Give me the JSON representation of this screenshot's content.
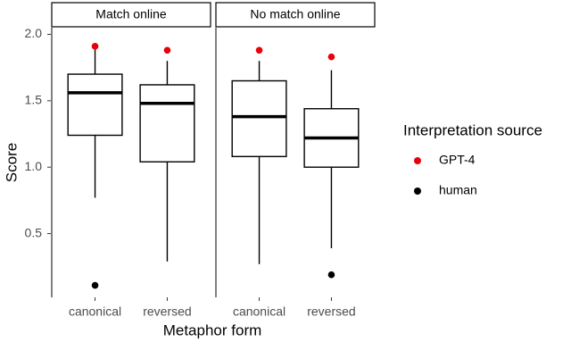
{
  "chart_data": [
    {
      "type": "box",
      "title": "Match online",
      "categories": [
        "canonical",
        "reversed"
      ],
      "boxes": [
        {
          "min": 0.77,
          "q1": 1.24,
          "median": 1.56,
          "q3": 1.7,
          "max": 1.9
        },
        {
          "min": 0.29,
          "q1": 1.04,
          "median": 1.48,
          "q3": 1.62,
          "max": 1.8
        }
      ],
      "series": [
        {
          "values": [
            1.91,
            1.88
          ]
        },
        {
          "values": [
            0.11,
            null
          ]
        }
      ]
    },
    {
      "type": "box",
      "title": "No match online",
      "categories": [
        "canonical",
        "reversed"
      ],
      "boxes": [
        {
          "min": 0.27,
          "q1": 1.08,
          "median": 1.38,
          "q3": 1.65,
          "max": 1.8
        },
        {
          "min": 0.39,
          "q1": 1.0,
          "median": 1.22,
          "q3": 1.44,
          "max": 1.73
        }
      ],
      "series": [
        {
          "values": [
            1.88,
            1.83
          ]
        },
        {
          "values": [
            null,
            0.19
          ]
        }
      ]
    }
  ],
  "shared": {
    "ylabel": "Score",
    "xlabel": "Metaphor form",
    "ylim": [
      0.02,
      2.05
    ],
    "yticks": [
      0.5,
      {
        "value": 1,
        "label": "1.0"
      },
      1.5,
      {
        "value": 2,
        "label": "2.0"
      }
    ],
    "legend_title": "Interpretation source",
    "legend_position": "right",
    "legend": [
      {
        "name": "GPT-4",
        "color": "#e8000b"
      },
      {
        "name": "human",
        "color": "#000000"
      }
    ]
  }
}
